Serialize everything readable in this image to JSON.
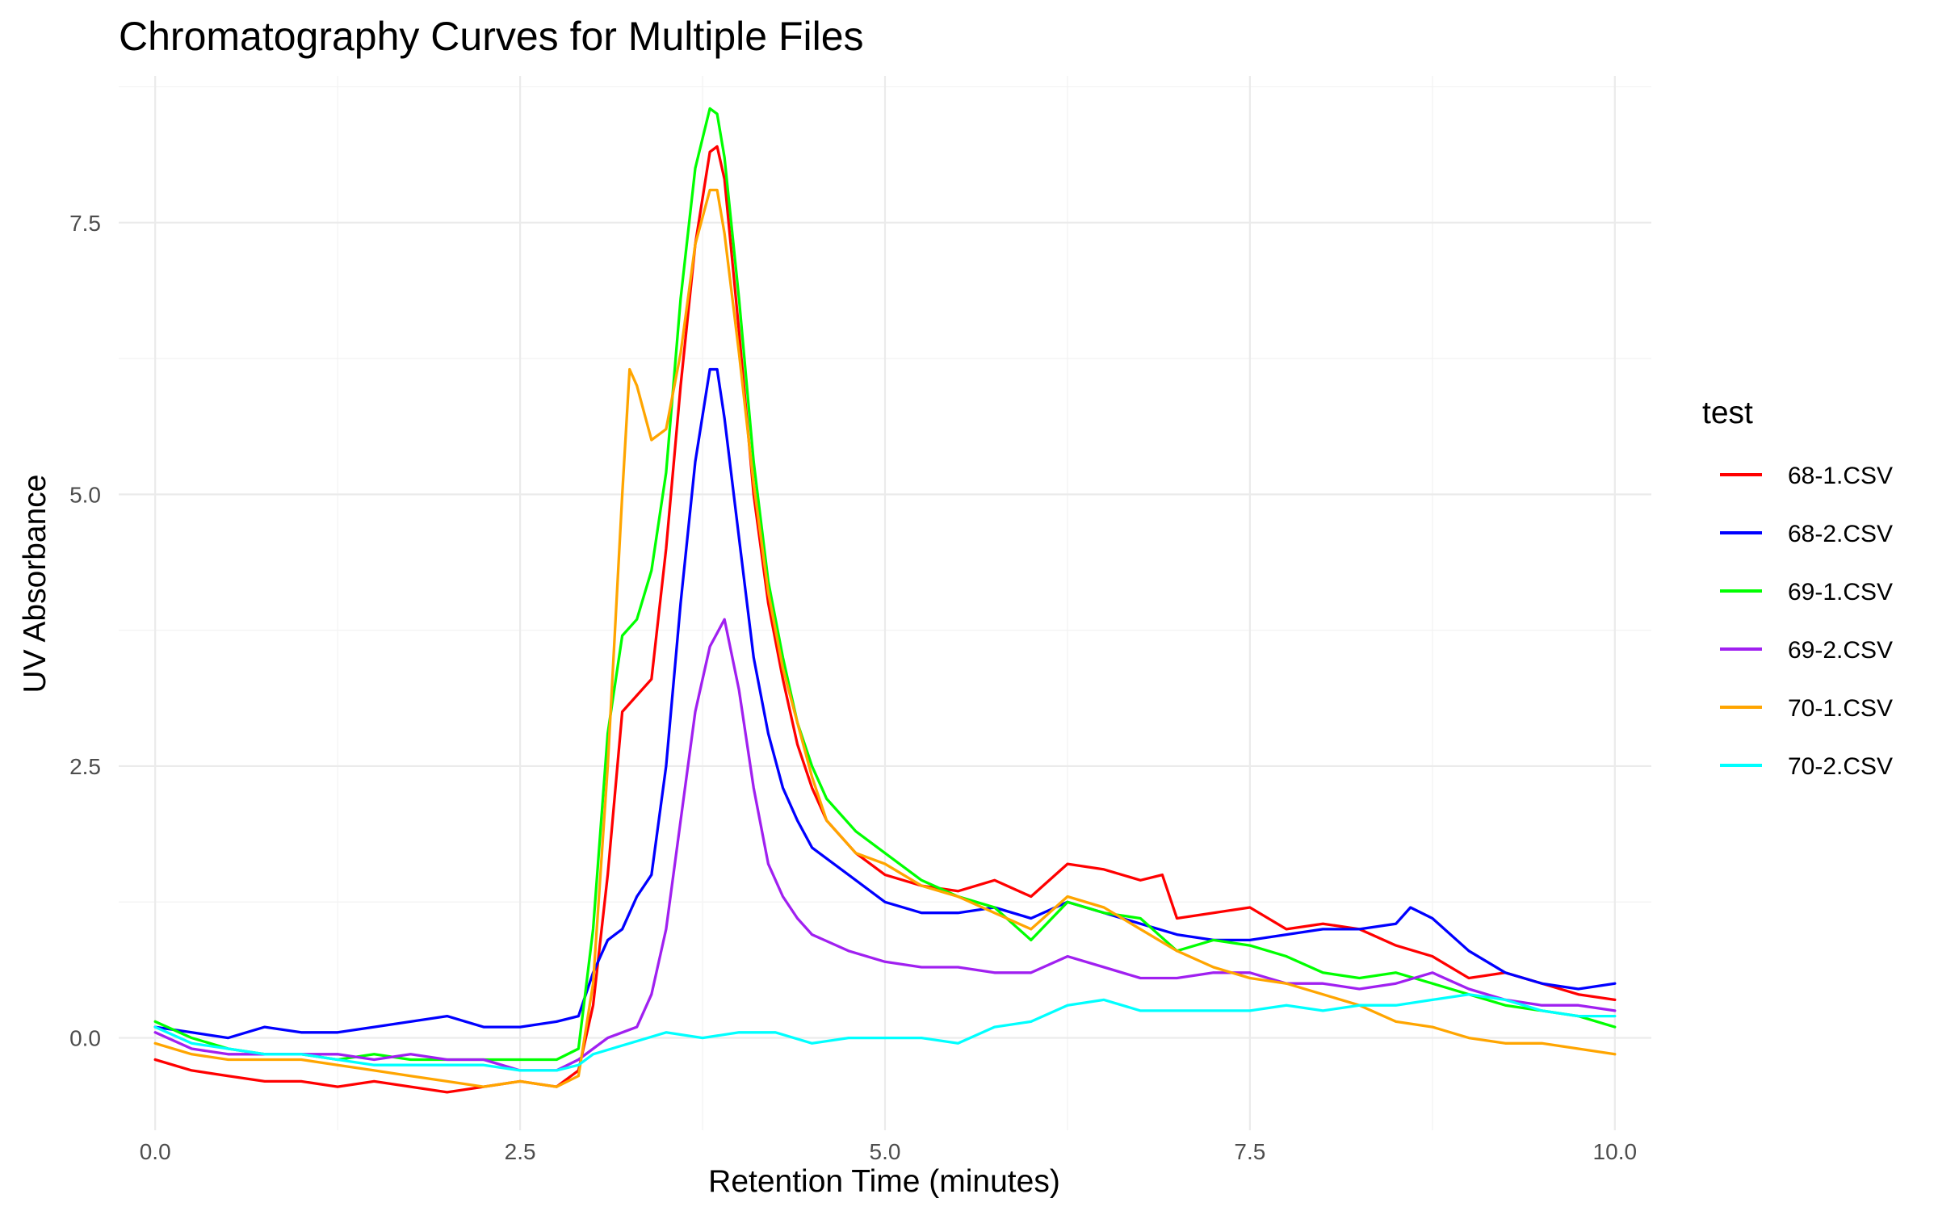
{
  "chart_data": {
    "type": "line",
    "title": "Chromatography Curves for Multiple Files",
    "xlabel": "Retention Time (minutes)",
    "ylabel": "UV Absorbance",
    "xlim": [
      -0.25,
      10.25
    ],
    "ylim": [
      -0.85,
      8.85
    ],
    "x_ticks": [
      {
        "value": 0,
        "label": "0.0"
      },
      {
        "value": 2.5,
        "label": "2.5"
      },
      {
        "value": 5,
        "label": "5.0"
      },
      {
        "value": 7.5,
        "label": "7.5"
      },
      {
        "value": 10,
        "label": "10.0"
      }
    ],
    "y_ticks": [
      {
        "value": 0,
        "label": "0.0"
      },
      {
        "value": 2.5,
        "label": "2.5"
      },
      {
        "value": 5,
        "label": "5.0"
      },
      {
        "value": 7.5,
        "label": "7.5"
      }
    ],
    "grid": true,
    "legend": {
      "title": "test",
      "position": "right"
    },
    "series": [
      {
        "name": "68-1.CSV",
        "color": "#ff0000",
        "points": [
          [
            0,
            -0.2
          ],
          [
            0.25,
            -0.3
          ],
          [
            0.5,
            -0.35
          ],
          [
            0.75,
            -0.4
          ],
          [
            1.0,
            -0.4
          ],
          [
            1.25,
            -0.45
          ],
          [
            1.5,
            -0.4
          ],
          [
            1.75,
            -0.45
          ],
          [
            2.0,
            -0.5
          ],
          [
            2.25,
            -0.45
          ],
          [
            2.5,
            -0.4
          ],
          [
            2.75,
            -0.45
          ],
          [
            2.9,
            -0.3
          ],
          [
            3.0,
            0.3
          ],
          [
            3.1,
            1.5
          ],
          [
            3.2,
            3.0
          ],
          [
            3.3,
            3.15
          ],
          [
            3.4,
            3.3
          ],
          [
            3.5,
            4.5
          ],
          [
            3.6,
            6.0
          ],
          [
            3.7,
            7.3
          ],
          [
            3.8,
            8.15
          ],
          [
            3.85,
            8.2
          ],
          [
            3.9,
            7.9
          ],
          [
            4.0,
            6.5
          ],
          [
            4.1,
            5.0
          ],
          [
            4.2,
            4.0
          ],
          [
            4.3,
            3.3
          ],
          [
            4.4,
            2.7
          ],
          [
            4.5,
            2.3
          ],
          [
            4.6,
            2.0
          ],
          [
            4.8,
            1.7
          ],
          [
            5.0,
            1.5
          ],
          [
            5.25,
            1.4
          ],
          [
            5.5,
            1.35
          ],
          [
            5.75,
            1.45
          ],
          [
            6.0,
            1.3
          ],
          [
            6.25,
            1.6
          ],
          [
            6.5,
            1.55
          ],
          [
            6.75,
            1.45
          ],
          [
            6.9,
            1.5
          ],
          [
            7.0,
            1.1
          ],
          [
            7.25,
            1.15
          ],
          [
            7.5,
            1.2
          ],
          [
            7.75,
            1.0
          ],
          [
            8.0,
            1.05
          ],
          [
            8.25,
            1.0
          ],
          [
            8.5,
            0.85
          ],
          [
            8.75,
            0.75
          ],
          [
            9.0,
            0.55
          ],
          [
            9.25,
            0.6
          ],
          [
            9.5,
            0.5
          ],
          [
            9.75,
            0.4
          ],
          [
            10.0,
            0.35
          ]
        ]
      },
      {
        "name": "68-2.CSV",
        "color": "#0000ff",
        "points": [
          [
            0,
            0.1
          ],
          [
            0.25,
            0.05
          ],
          [
            0.5,
            0.0
          ],
          [
            0.75,
            0.1
          ],
          [
            1.0,
            0.05
          ],
          [
            1.25,
            0.05
          ],
          [
            1.5,
            0.1
          ],
          [
            1.75,
            0.15
          ],
          [
            2.0,
            0.2
          ],
          [
            2.25,
            0.1
          ],
          [
            2.5,
            0.1
          ],
          [
            2.75,
            0.15
          ],
          [
            2.9,
            0.2
          ],
          [
            3.0,
            0.6
          ],
          [
            3.1,
            0.9
          ],
          [
            3.2,
            1.0
          ],
          [
            3.3,
            1.3
          ],
          [
            3.4,
            1.5
          ],
          [
            3.5,
            2.5
          ],
          [
            3.6,
            4.0
          ],
          [
            3.7,
            5.3
          ],
          [
            3.8,
            6.15
          ],
          [
            3.85,
            6.15
          ],
          [
            3.9,
            5.7
          ],
          [
            4.0,
            4.6
          ],
          [
            4.1,
            3.5
          ],
          [
            4.2,
            2.8
          ],
          [
            4.3,
            2.3
          ],
          [
            4.4,
            2.0
          ],
          [
            4.5,
            1.75
          ],
          [
            4.75,
            1.5
          ],
          [
            5.0,
            1.25
          ],
          [
            5.25,
            1.15
          ],
          [
            5.5,
            1.15
          ],
          [
            5.75,
            1.2
          ],
          [
            6.0,
            1.1
          ],
          [
            6.25,
            1.25
          ],
          [
            6.5,
            1.15
          ],
          [
            6.75,
            1.05
          ],
          [
            7.0,
            0.95
          ],
          [
            7.25,
            0.9
          ],
          [
            7.5,
            0.9
          ],
          [
            7.75,
            0.95
          ],
          [
            8.0,
            1.0
          ],
          [
            8.25,
            1.0
          ],
          [
            8.5,
            1.05
          ],
          [
            8.6,
            1.2
          ],
          [
            8.75,
            1.1
          ],
          [
            9.0,
            0.8
          ],
          [
            9.25,
            0.6
          ],
          [
            9.5,
            0.5
          ],
          [
            9.75,
            0.45
          ],
          [
            10.0,
            0.5
          ]
        ]
      },
      {
        "name": "69-1.CSV",
        "color": "#00ff00",
        "points": [
          [
            0,
            0.15
          ],
          [
            0.25,
            0.0
          ],
          [
            0.5,
            -0.1
          ],
          [
            0.75,
            -0.15
          ],
          [
            1.0,
            -0.15
          ],
          [
            1.25,
            -0.2
          ],
          [
            1.5,
            -0.15
          ],
          [
            1.75,
            -0.2
          ],
          [
            2.0,
            -0.2
          ],
          [
            2.25,
            -0.2
          ],
          [
            2.5,
            -0.2
          ],
          [
            2.75,
            -0.2
          ],
          [
            2.9,
            -0.1
          ],
          [
            3.0,
            1.0
          ],
          [
            3.1,
            2.8
          ],
          [
            3.2,
            3.7
          ],
          [
            3.3,
            3.85
          ],
          [
            3.4,
            4.3
          ],
          [
            3.5,
            5.2
          ],
          [
            3.6,
            6.8
          ],
          [
            3.7,
            8.0
          ],
          [
            3.8,
            8.55
          ],
          [
            3.85,
            8.5
          ],
          [
            3.9,
            8.1
          ],
          [
            4.0,
            6.8
          ],
          [
            4.1,
            5.3
          ],
          [
            4.2,
            4.2
          ],
          [
            4.3,
            3.5
          ],
          [
            4.4,
            2.9
          ],
          [
            4.5,
            2.5
          ],
          [
            4.6,
            2.2
          ],
          [
            4.8,
            1.9
          ],
          [
            5.0,
            1.7
          ],
          [
            5.25,
            1.45
          ],
          [
            5.5,
            1.3
          ],
          [
            5.75,
            1.2
          ],
          [
            6.0,
            0.9
          ],
          [
            6.25,
            1.25
          ],
          [
            6.5,
            1.15
          ],
          [
            6.75,
            1.1
          ],
          [
            7.0,
            0.8
          ],
          [
            7.25,
            0.9
          ],
          [
            7.5,
            0.85
          ],
          [
            7.75,
            0.75
          ],
          [
            8.0,
            0.6
          ],
          [
            8.25,
            0.55
          ],
          [
            8.5,
            0.6
          ],
          [
            8.75,
            0.5
          ],
          [
            9.0,
            0.4
          ],
          [
            9.25,
            0.3
          ],
          [
            9.5,
            0.25
          ],
          [
            9.75,
            0.2
          ],
          [
            10.0,
            0.1
          ]
        ]
      },
      {
        "name": "69-2.CSV",
        "color": "#a020f0",
        "points": [
          [
            0,
            0.05
          ],
          [
            0.25,
            -0.1
          ],
          [
            0.5,
            -0.15
          ],
          [
            0.75,
            -0.15
          ],
          [
            1.0,
            -0.15
          ],
          [
            1.25,
            -0.15
          ],
          [
            1.5,
            -0.2
          ],
          [
            1.75,
            -0.15
          ],
          [
            2.0,
            -0.2
          ],
          [
            2.25,
            -0.2
          ],
          [
            2.5,
            -0.3
          ],
          [
            2.75,
            -0.3
          ],
          [
            2.9,
            -0.2
          ],
          [
            3.0,
            -0.1
          ],
          [
            3.1,
            0.0
          ],
          [
            3.2,
            0.05
          ],
          [
            3.3,
            0.1
          ],
          [
            3.4,
            0.4
          ],
          [
            3.5,
            1.0
          ],
          [
            3.6,
            2.0
          ],
          [
            3.7,
            3.0
          ],
          [
            3.8,
            3.6
          ],
          [
            3.9,
            3.85
          ],
          [
            4.0,
            3.2
          ],
          [
            4.1,
            2.3
          ],
          [
            4.2,
            1.6
          ],
          [
            4.3,
            1.3
          ],
          [
            4.4,
            1.1
          ],
          [
            4.5,
            0.95
          ],
          [
            4.75,
            0.8
          ],
          [
            5.0,
            0.7
          ],
          [
            5.25,
            0.65
          ],
          [
            5.5,
            0.65
          ],
          [
            5.75,
            0.6
          ],
          [
            6.0,
            0.6
          ],
          [
            6.25,
            0.75
          ],
          [
            6.5,
            0.65
          ],
          [
            6.75,
            0.55
          ],
          [
            7.0,
            0.55
          ],
          [
            7.25,
            0.6
          ],
          [
            7.5,
            0.6
          ],
          [
            7.75,
            0.5
          ],
          [
            8.0,
            0.5
          ],
          [
            8.25,
            0.45
          ],
          [
            8.5,
            0.5
          ],
          [
            8.75,
            0.6
          ],
          [
            9.0,
            0.45
          ],
          [
            9.25,
            0.35
          ],
          [
            9.5,
            0.3
          ],
          [
            9.75,
            0.3
          ],
          [
            10.0,
            0.25
          ]
        ]
      },
      {
        "name": "70-1.CSV",
        "color": "#ffa500",
        "points": [
          [
            0,
            -0.05
          ],
          [
            0.25,
            -0.15
          ],
          [
            0.5,
            -0.2
          ],
          [
            0.75,
            -0.2
          ],
          [
            1.0,
            -0.2
          ],
          [
            1.25,
            -0.25
          ],
          [
            1.5,
            -0.3
          ],
          [
            1.75,
            -0.35
          ],
          [
            2.0,
            -0.4
          ],
          [
            2.25,
            -0.45
          ],
          [
            2.5,
            -0.4
          ],
          [
            2.75,
            -0.45
          ],
          [
            2.9,
            -0.35
          ],
          [
            3.0,
            0.5
          ],
          [
            3.1,
            2.5
          ],
          [
            3.2,
            5.0
          ],
          [
            3.25,
            6.15
          ],
          [
            3.3,
            6.0
          ],
          [
            3.4,
            5.5
          ],
          [
            3.5,
            5.6
          ],
          [
            3.6,
            6.3
          ],
          [
            3.7,
            7.3
          ],
          [
            3.8,
            7.8
          ],
          [
            3.85,
            7.8
          ],
          [
            3.9,
            7.4
          ],
          [
            4.0,
            6.3
          ],
          [
            4.1,
            5.1
          ],
          [
            4.2,
            4.1
          ],
          [
            4.3,
            3.4
          ],
          [
            4.4,
            2.9
          ],
          [
            4.5,
            2.4
          ],
          [
            4.6,
            2.0
          ],
          [
            4.8,
            1.7
          ],
          [
            5.0,
            1.6
          ],
          [
            5.25,
            1.4
          ],
          [
            5.5,
            1.3
          ],
          [
            5.75,
            1.15
          ],
          [
            6.0,
            1.0
          ],
          [
            6.25,
            1.3
          ],
          [
            6.5,
            1.2
          ],
          [
            6.75,
            1.0
          ],
          [
            7.0,
            0.8
          ],
          [
            7.25,
            0.65
          ],
          [
            7.5,
            0.55
          ],
          [
            7.75,
            0.5
          ],
          [
            8.0,
            0.4
          ],
          [
            8.25,
            0.3
          ],
          [
            8.5,
            0.15
          ],
          [
            8.75,
            0.1
          ],
          [
            9.0,
            0.0
          ],
          [
            9.25,
            -0.05
          ],
          [
            9.5,
            -0.05
          ],
          [
            9.75,
            -0.1
          ],
          [
            10.0,
            -0.15
          ]
        ]
      },
      {
        "name": "70-2.CSV",
        "color": "#00ffff",
        "points": [
          [
            0,
            0.1
          ],
          [
            0.25,
            -0.05
          ],
          [
            0.5,
            -0.1
          ],
          [
            0.75,
            -0.15
          ],
          [
            1.0,
            -0.15
          ],
          [
            1.25,
            -0.2
          ],
          [
            1.5,
            -0.25
          ],
          [
            1.75,
            -0.25
          ],
          [
            2.0,
            -0.25
          ],
          [
            2.25,
            -0.25
          ],
          [
            2.5,
            -0.3
          ],
          [
            2.75,
            -0.3
          ],
          [
            2.9,
            -0.25
          ],
          [
            3.0,
            -0.15
          ],
          [
            3.25,
            -0.05
          ],
          [
            3.5,
            0.05
          ],
          [
            3.75,
            0.0
          ],
          [
            4.0,
            0.05
          ],
          [
            4.25,
            0.05
          ],
          [
            4.5,
            -0.05
          ],
          [
            4.75,
            0.0
          ],
          [
            5.0,
            0.0
          ],
          [
            5.25,
            0.0
          ],
          [
            5.5,
            -0.05
          ],
          [
            5.75,
            0.1
          ],
          [
            6.0,
            0.15
          ],
          [
            6.25,
            0.3
          ],
          [
            6.5,
            0.35
          ],
          [
            6.75,
            0.25
          ],
          [
            7.0,
            0.25
          ],
          [
            7.25,
            0.25
          ],
          [
            7.5,
            0.25
          ],
          [
            7.75,
            0.3
          ],
          [
            8.0,
            0.25
          ],
          [
            8.25,
            0.3
          ],
          [
            8.5,
            0.3
          ],
          [
            8.75,
            0.35
          ],
          [
            9.0,
            0.4
          ],
          [
            9.25,
            0.35
          ],
          [
            9.5,
            0.25
          ],
          [
            9.75,
            0.2
          ],
          [
            10.0,
            0.2
          ]
        ]
      }
    ]
  }
}
